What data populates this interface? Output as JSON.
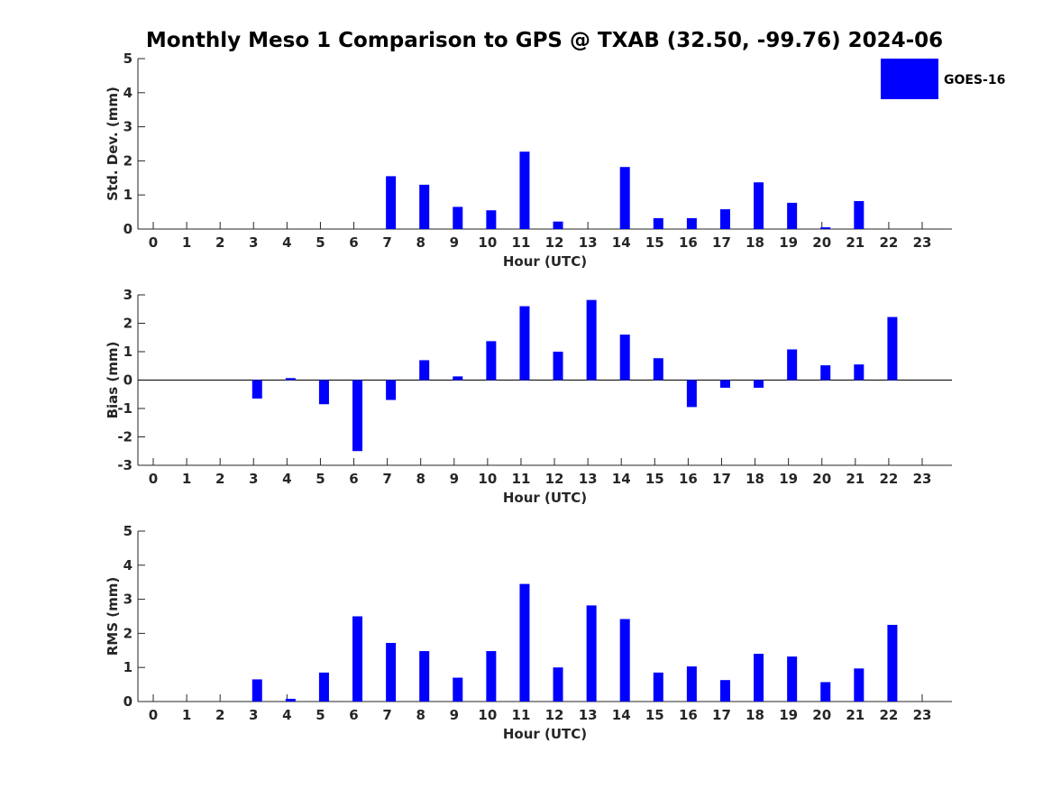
{
  "chart_data": {
    "type": "bar",
    "title": "Monthly Meso 1 Comparison to GPS @ TXAB (32.50, -99.76) 2024-06",
    "categories": [
      "0",
      "1",
      "2",
      "3",
      "4",
      "5",
      "6",
      "7",
      "8",
      "9",
      "10",
      "11",
      "12",
      "13",
      "14",
      "15",
      "16",
      "17",
      "18",
      "19",
      "20",
      "21",
      "22",
      "23"
    ],
    "legend": {
      "entries": [
        "GOES-16"
      ],
      "placement": "top-right"
    },
    "bar_color": "#0000ff",
    "panels": [
      {
        "ylabel": "Std. Dev. (mm)",
        "xlabel": "Hour (UTC)",
        "ylim": [
          0,
          5
        ],
        "yticks": [
          0,
          1,
          2,
          3,
          4,
          5
        ],
        "series": [
          {
            "name": "GOES-16",
            "values": [
              0,
              0,
              0,
              0,
              0,
              0,
              0,
              1.55,
              1.3,
              0.65,
              0.55,
              2.27,
              0.22,
              0,
              1.82,
              0.32,
              0.32,
              0.58,
              1.37,
              0.77,
              0.05,
              0.82,
              0,
              0
            ]
          }
        ]
      },
      {
        "ylabel": "Bias (mm)",
        "xlabel": "Hour (UTC)",
        "ylim": [
          -3,
          3
        ],
        "yticks": [
          -3,
          -2,
          -1,
          0,
          1,
          2,
          3
        ],
        "series": [
          {
            "name": "GOES-16",
            "values": [
              0,
              0,
              0,
              -0.65,
              0.07,
              -0.85,
              -2.5,
              -0.7,
              0.7,
              0.13,
              1.37,
              2.6,
              1.0,
              2.82,
              1.6,
              0.77,
              -0.95,
              -0.27,
              -0.27,
              1.08,
              0.52,
              0.55,
              2.22,
              0
            ]
          }
        ]
      },
      {
        "ylabel": "RMS (mm)",
        "xlabel": "Hour (UTC)",
        "ylim": [
          0,
          5
        ],
        "yticks": [
          0,
          1,
          2,
          3,
          4,
          5
        ],
        "series": [
          {
            "name": "GOES-16",
            "values": [
              0,
              0,
              0,
              0.65,
              0.08,
              0.85,
              2.5,
              1.72,
              1.48,
              0.7,
              1.48,
              3.45,
              1.0,
              2.82,
              2.42,
              0.85,
              1.03,
              0.63,
              1.4,
              1.32,
              0.57,
              0.97,
              2.25,
              0
            ]
          }
        ]
      }
    ]
  }
}
